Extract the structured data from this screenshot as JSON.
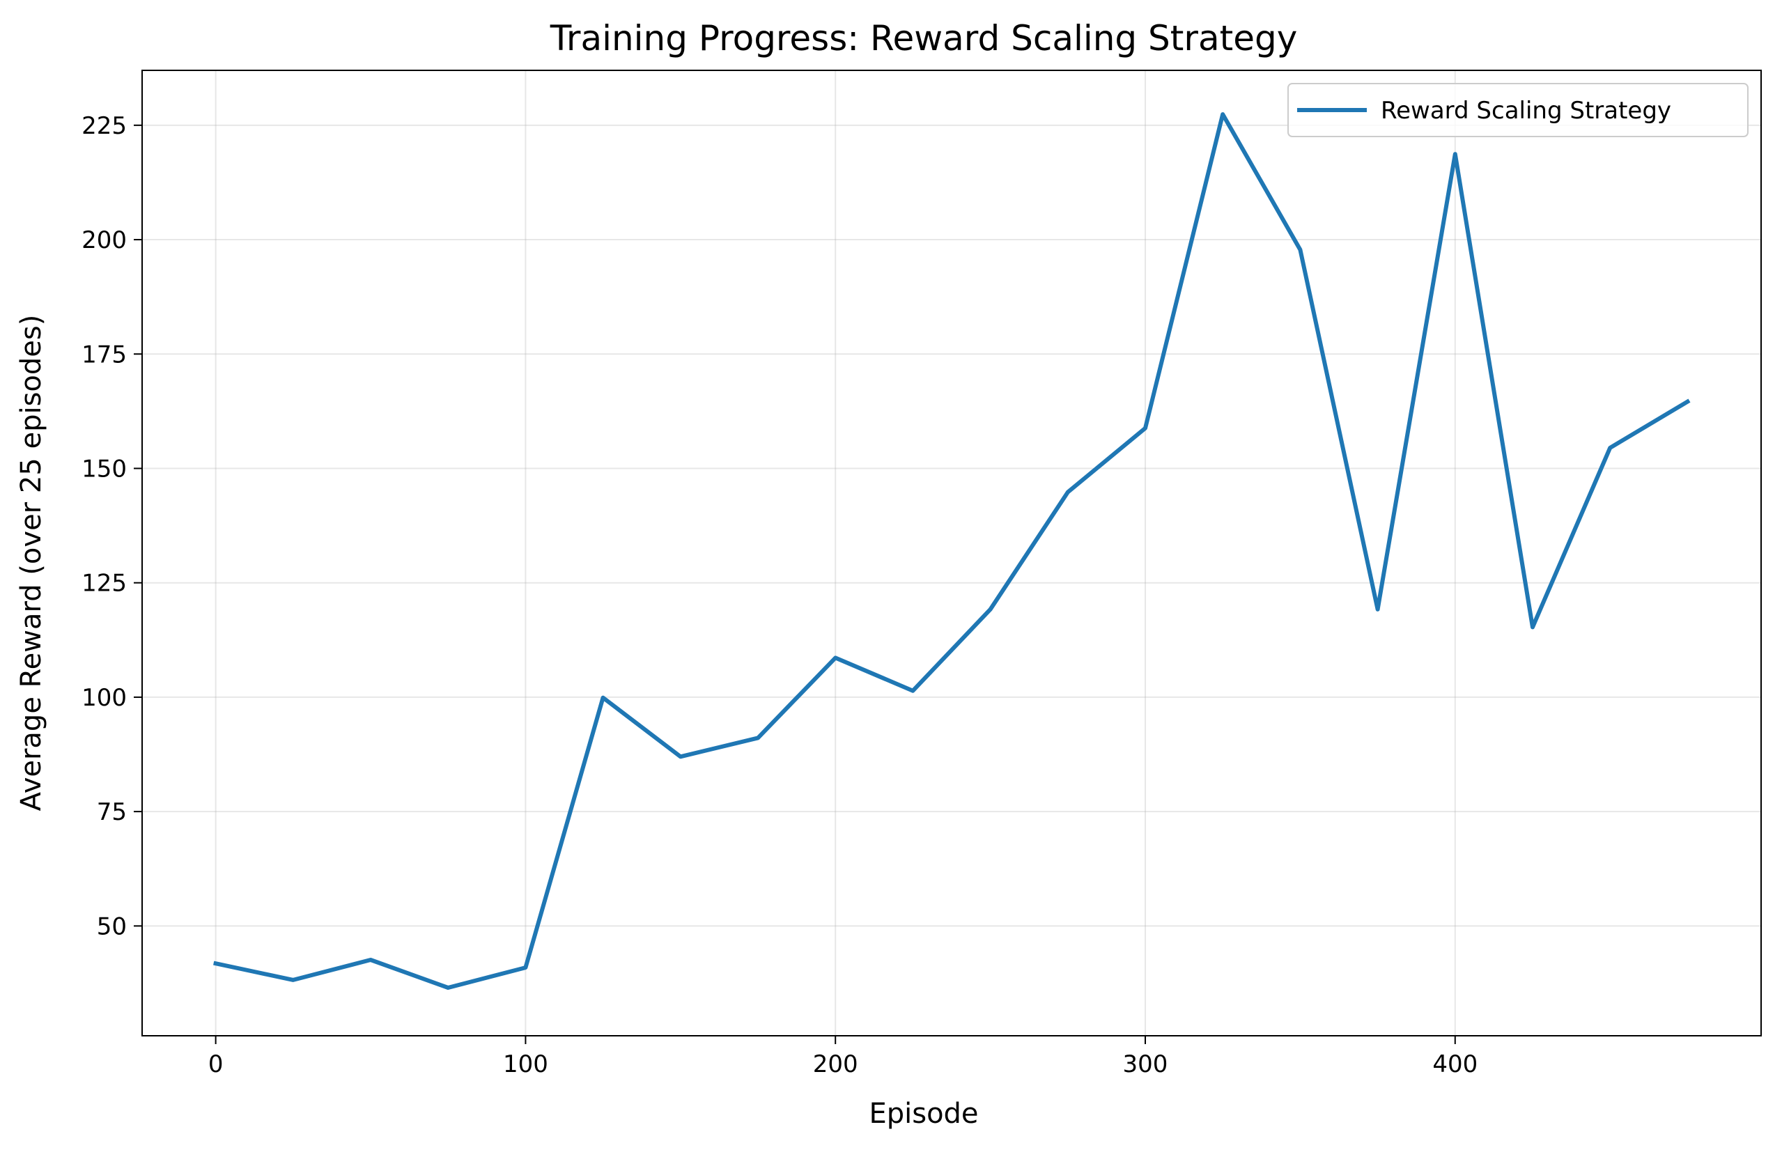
{
  "chart_data": {
    "type": "line",
    "title": "Training Progress: Reward Scaling Strategy",
    "xlabel": "Episode",
    "ylabel": "Average Reward (over 25 episodes)",
    "xlim": [
      -23.75,
      498.75
    ],
    "ylim": [
      26,
      237
    ],
    "xticks": [
      0,
      100,
      200,
      300,
      400
    ],
    "yticks": [
      50,
      75,
      100,
      125,
      150,
      175,
      200,
      225
    ],
    "grid": true,
    "legend_position": "top-right",
    "series": [
      {
        "name": "Reward Scaling Strategy",
        "color": "#1f77b4",
        "x": [
          0,
          25,
          50,
          75,
          100,
          125,
          150,
          175,
          200,
          225,
          250,
          275,
          300,
          325,
          350,
          375,
          400,
          425,
          450,
          475
        ],
        "y": [
          41.8,
          38.2,
          42.6,
          36.5,
          40.9,
          99.9,
          87.0,
          91.1,
          108.6,
          101.4,
          119.2,
          144.8,
          158.8,
          227.4,
          197.8,
          119.2,
          218.7,
          115.3,
          154.5,
          164.6
        ]
      }
    ]
  }
}
